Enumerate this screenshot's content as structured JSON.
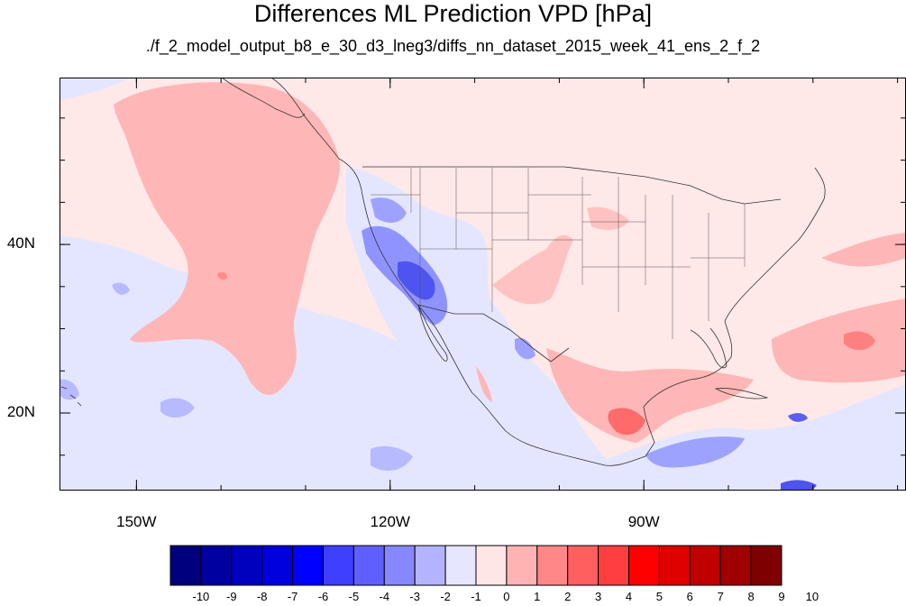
{
  "title": "Differences ML Prediction VPD [hPa]",
  "subtitle": "./f_2_model_output_b8_e_30_d3_lneg3/diffs_nn_dataset_2015_week_41_ens_2_f_2",
  "map": {
    "lon_range": [
      -159.1,
      -59.0
    ],
    "lat_range": [
      10.8,
      59.8
    ],
    "lon_ticks": [
      {
        "value": -150,
        "label": "150W"
      },
      {
        "value": -120,
        "label": "120W"
      },
      {
        "value": -90,
        "label": "90W"
      }
    ],
    "lat_ticks": [
      {
        "value": 40,
        "label": "40N"
      },
      {
        "value": 20,
        "label": "20N"
      }
    ]
  },
  "colorbar": {
    "levels": [
      "-10",
      "-9",
      "-8",
      "-7",
      "-6",
      "-5",
      "-4",
      "-3",
      "-2",
      "-1",
      "0",
      "1",
      "2",
      "3",
      "4",
      "5",
      "6",
      "7",
      "8",
      "9",
      "10"
    ],
    "colors": [
      "#00007f",
      "#00009f",
      "#0000bf",
      "#0000df",
      "#0000ff",
      "#3f3fff",
      "#5f5fff",
      "#8787ff",
      "#b3b3ff",
      "#e6e6ff",
      "#ffe6e6",
      "#ffb3b3",
      "#ff8787",
      "#ff5f5f",
      "#ff3f3f",
      "#ff0000",
      "#df0000",
      "#bf0000",
      "#9f0000",
      "#7f0000"
    ]
  }
}
